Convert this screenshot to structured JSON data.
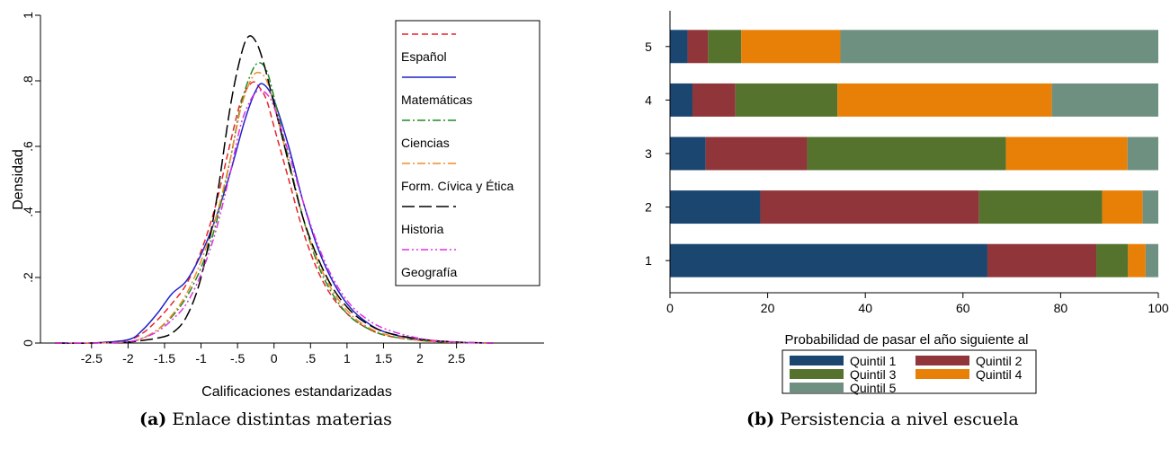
{
  "captions": {
    "a": {
      "label": "(a)",
      "text": "Enlace distintas materias"
    },
    "b": {
      "label": "(b)",
      "text": "Persistencia a nivel escuela"
    }
  },
  "chart_data": [
    {
      "type": "line",
      "title": "",
      "xlabel": "Calificaciones estandarizadas",
      "ylabel": "Densidad",
      "xlim": [
        -3.2,
        3.7
      ],
      "ylim": [
        0,
        1.0
      ],
      "xticks": [
        "-2.5",
        "-2",
        "-1.5",
        "-1",
        "-.5",
        "0",
        ".5",
        "1",
        "1.5",
        "2",
        "2.5"
      ],
      "xtick_values": [
        -2.5,
        -2,
        -1.5,
        -1,
        -0.5,
        0,
        0.5,
        1,
        1.5,
        2,
        2.5
      ],
      "yticks": [
        "0",
        ".2",
        ".4",
        ".6",
        ".8",
        "1"
      ],
      "ytick_values": [
        0,
        0.2,
        0.4,
        0.6,
        0.8,
        1.0
      ],
      "grid": false,
      "legend_position": "top-right",
      "legend_leading_empty_entry": true,
      "series": [
        {
          "name": "Español",
          "color": "#e8242a",
          "dash": "dashed",
          "x": [
            -3.0,
            -2.5,
            -2.0,
            -1.8,
            -1.6,
            -1.4,
            -1.2,
            -1.0,
            -0.8,
            -0.6,
            -0.45,
            -0.3,
            -0.2,
            -0.1,
            0.0,
            0.2,
            0.4,
            0.6,
            0.8,
            1.0,
            1.2,
            1.5,
            2.0,
            2.5,
            3.0
          ],
          "y": [
            0.0,
            0.0,
            0.01,
            0.03,
            0.07,
            0.12,
            0.18,
            0.28,
            0.42,
            0.61,
            0.74,
            0.795,
            0.78,
            0.74,
            0.66,
            0.5,
            0.34,
            0.22,
            0.14,
            0.09,
            0.055,
            0.025,
            0.008,
            0.002,
            0.0
          ]
        },
        {
          "name": "Matemáticas",
          "color": "#1f22c8",
          "dash": "solid",
          "x": [
            -3.0,
            -2.5,
            -2.0,
            -1.8,
            -1.6,
            -1.4,
            -1.2,
            -1.0,
            -0.8,
            -0.6,
            -0.4,
            -0.25,
            -0.15,
            0.0,
            0.2,
            0.4,
            0.6,
            0.8,
            1.0,
            1.2,
            1.5,
            2.0,
            2.5,
            3.0
          ],
          "y": [
            0.0,
            0.0,
            0.01,
            0.04,
            0.09,
            0.15,
            0.19,
            0.27,
            0.38,
            0.52,
            0.68,
            0.77,
            0.79,
            0.74,
            0.6,
            0.43,
            0.29,
            0.19,
            0.12,
            0.075,
            0.035,
            0.01,
            0.002,
            0.0
          ]
        },
        {
          "name": "Ciencias",
          "color": "#1e8c23",
          "dash": "dashdot",
          "x": [
            -3.0,
            -2.5,
            -2.0,
            -1.8,
            -1.6,
            -1.4,
            -1.2,
            -1.0,
            -0.8,
            -0.6,
            -0.45,
            -0.3,
            -0.2,
            -0.1,
            0.0,
            0.2,
            0.4,
            0.6,
            0.8,
            1.0,
            1.2,
            1.5,
            2.0,
            2.5,
            3.0
          ],
          "y": [
            0.0,
            0.0,
            0.004,
            0.015,
            0.04,
            0.08,
            0.14,
            0.23,
            0.36,
            0.56,
            0.73,
            0.83,
            0.855,
            0.83,
            0.75,
            0.56,
            0.38,
            0.24,
            0.15,
            0.09,
            0.055,
            0.025,
            0.008,
            0.002,
            0.0
          ]
        },
        {
          "name": "Form. Cívica y Ética",
          "color": "#f28c28",
          "dash": "dashdot",
          "x": [
            -3.0,
            -2.5,
            -2.0,
            -1.8,
            -1.6,
            -1.4,
            -1.2,
            -1.0,
            -0.8,
            -0.6,
            -0.45,
            -0.3,
            -0.2,
            -0.1,
            0.0,
            0.2,
            0.4,
            0.6,
            0.8,
            1.0,
            1.2,
            1.5,
            2.0,
            2.5,
            3.0
          ],
          "y": [
            0.0,
            0.0,
            0.004,
            0.015,
            0.04,
            0.085,
            0.15,
            0.25,
            0.38,
            0.56,
            0.72,
            0.81,
            0.825,
            0.8,
            0.73,
            0.55,
            0.38,
            0.25,
            0.16,
            0.1,
            0.06,
            0.028,
            0.008,
            0.002,
            0.0
          ]
        },
        {
          "name": "Historia",
          "color": "#000000",
          "dash": "longdash",
          "x": [
            -3.0,
            -2.5,
            -2.0,
            -1.8,
            -1.6,
            -1.4,
            -1.2,
            -1.0,
            -0.8,
            -0.6,
            -0.45,
            -0.35,
            -0.25,
            -0.15,
            0.0,
            0.2,
            0.4,
            0.6,
            0.8,
            1.0,
            1.2,
            1.5,
            2.0,
            2.5,
            3.0
          ],
          "y": [
            0.0,
            0.0,
            0.003,
            0.008,
            0.015,
            0.03,
            0.08,
            0.2,
            0.42,
            0.72,
            0.88,
            0.935,
            0.92,
            0.86,
            0.73,
            0.55,
            0.38,
            0.26,
            0.17,
            0.11,
            0.07,
            0.035,
            0.012,
            0.003,
            0.0
          ]
        },
        {
          "name": "Geografía",
          "color": "#e22ee2",
          "dash": "dashdotdot",
          "x": [
            -3.0,
            -2.5,
            -2.0,
            -1.8,
            -1.6,
            -1.4,
            -1.2,
            -1.0,
            -0.8,
            -0.6,
            -0.45,
            -0.3,
            -0.2,
            -0.1,
            0.0,
            0.2,
            0.4,
            0.6,
            0.8,
            1.0,
            1.2,
            1.5,
            2.0,
            2.5,
            3.0
          ],
          "y": [
            0.0,
            0.0,
            0.004,
            0.015,
            0.035,
            0.07,
            0.12,
            0.21,
            0.34,
            0.52,
            0.67,
            0.75,
            0.77,
            0.76,
            0.72,
            0.58,
            0.43,
            0.3,
            0.2,
            0.13,
            0.085,
            0.045,
            0.014,
            0.003,
            0.0
          ]
        }
      ]
    },
    {
      "type": "bar",
      "orientation": "horizontal",
      "stacked": true,
      "title": "",
      "xlabel": "Probabilidad de pasar el año siguiente al",
      "ylabel": "",
      "xlim": [
        0,
        100
      ],
      "xticks": [
        "0",
        "20",
        "40",
        "60",
        "80",
        "100"
      ],
      "xtick_values": [
        0,
        20,
        40,
        60,
        80,
        100
      ],
      "categories": [
        "1",
        "2",
        "3",
        "4",
        "5"
      ],
      "legend_position": "bottom",
      "grid": true,
      "series": [
        {
          "name": "Quintil 1",
          "color": "#1b466f",
          "values": [
            65.0,
            18.5,
            7.3,
            4.6,
            3.6
          ]
        },
        {
          "name": "Quintil 2",
          "color": "#903539",
          "values": [
            22.3,
            44.8,
            20.8,
            8.8,
            4.2
          ]
        },
        {
          "name": "Quintil 3",
          "color": "#55732d",
          "values": [
            6.5,
            25.2,
            40.7,
            20.9,
            6.8
          ]
        },
        {
          "name": "Quintil 4",
          "color": "#e88008",
          "values": [
            3.6,
            8.3,
            24.9,
            43.9,
            20.3
          ]
        },
        {
          "name": "Quintil 5",
          "color": "#6e9081",
          "values": [
            2.6,
            3.2,
            6.3,
            21.8,
            65.1
          ]
        }
      ]
    }
  ]
}
